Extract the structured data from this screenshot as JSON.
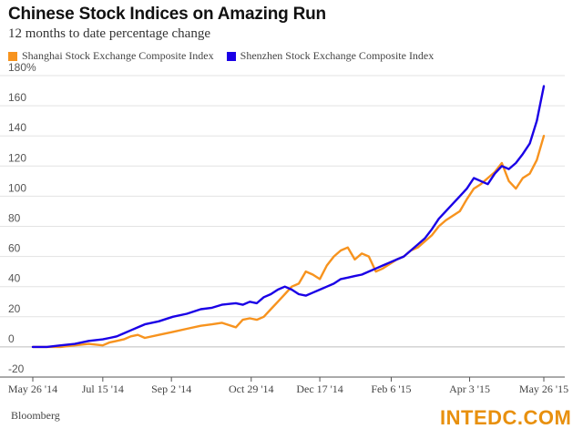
{
  "chart_data": {
    "type": "line",
    "title": "Chinese Stock Indices on Amazing Run",
    "subtitle": "12 months to date percentage change",
    "xlabel": "",
    "ylabel": "",
    "ylim": [
      -20,
      180
    ],
    "y_ticks": [
      "180%",
      "160",
      "140",
      "120",
      "100",
      "80",
      "60",
      "40",
      "20",
      "0",
      "-20"
    ],
    "x_ticks": [
      "May 26 '14",
      "Jul 15 '14",
      "Sep 2 '14",
      "Oct 29 '14",
      "Dec 17 '14",
      "Feb 6 '15",
      "Apr 3 '15",
      "May 26 '15"
    ],
    "x_domain": [
      0,
      365
    ],
    "x_tick_days": [
      0,
      50,
      99,
      156,
      205,
      256,
      312,
      365
    ],
    "grid": true,
    "legend_position": "top-left",
    "series": [
      {
        "name": "Shanghai Stock Exchange Composite Index",
        "color": "#f7931e",
        "x": [
          0,
          10,
          20,
          30,
          40,
          50,
          55,
          60,
          65,
          70,
          75,
          80,
          90,
          100,
          110,
          120,
          128,
          135,
          145,
          150,
          155,
          160,
          165,
          170,
          175,
          180,
          185,
          190,
          195,
          200,
          205,
          210,
          215,
          220,
          225,
          230,
          235,
          240,
          245,
          250,
          255,
          260,
          265,
          270,
          275,
          280,
          285,
          290,
          295,
          300,
          305,
          310,
          315,
          320,
          325,
          330,
          335,
          340,
          345,
          350,
          355,
          360,
          365
        ],
        "values": [
          0,
          0,
          0,
          1,
          2,
          1,
          3,
          4,
          5,
          7,
          8,
          6,
          8,
          10,
          12,
          14,
          15,
          16,
          13,
          18,
          19,
          18,
          20,
          25,
          30,
          35,
          40,
          42,
          50,
          48,
          45,
          54,
          60,
          64,
          66,
          58,
          62,
          60,
          50,
          52,
          55,
          58,
          60,
          64,
          66,
          70,
          74,
          80,
          84,
          87,
          90,
          98,
          105,
          108,
          112,
          116,
          122,
          110,
          105,
          112,
          115,
          124,
          140
        ]
      },
      {
        "name": "Shenzhen Stock Exchange Composite Index",
        "color": "#1a00e6",
        "x": [
          0,
          10,
          20,
          30,
          40,
          50,
          55,
          60,
          65,
          70,
          75,
          80,
          90,
          100,
          110,
          120,
          128,
          135,
          145,
          150,
          155,
          160,
          165,
          170,
          175,
          180,
          185,
          190,
          195,
          200,
          205,
          210,
          215,
          220,
          225,
          230,
          235,
          240,
          245,
          250,
          255,
          260,
          265,
          270,
          275,
          280,
          285,
          290,
          295,
          300,
          305,
          310,
          315,
          320,
          325,
          330,
          335,
          340,
          345,
          350,
          355,
          360,
          365
        ],
        "values": [
          0,
          0,
          1,
          2,
          4,
          5,
          6,
          7,
          9,
          11,
          13,
          15,
          17,
          20,
          22,
          25,
          26,
          28,
          29,
          28,
          30,
          29,
          33,
          35,
          38,
          40,
          38,
          35,
          34,
          36,
          38,
          40,
          42,
          45,
          46,
          47,
          48,
          50,
          52,
          54,
          56,
          58,
          60,
          64,
          68,
          72,
          78,
          85,
          90,
          95,
          100,
          105,
          112,
          110,
          108,
          115,
          120,
          118,
          122,
          128,
          135,
          150,
          173
        ]
      }
    ],
    "source": "Bloomberg"
  },
  "watermark": "INTEDC.COM"
}
